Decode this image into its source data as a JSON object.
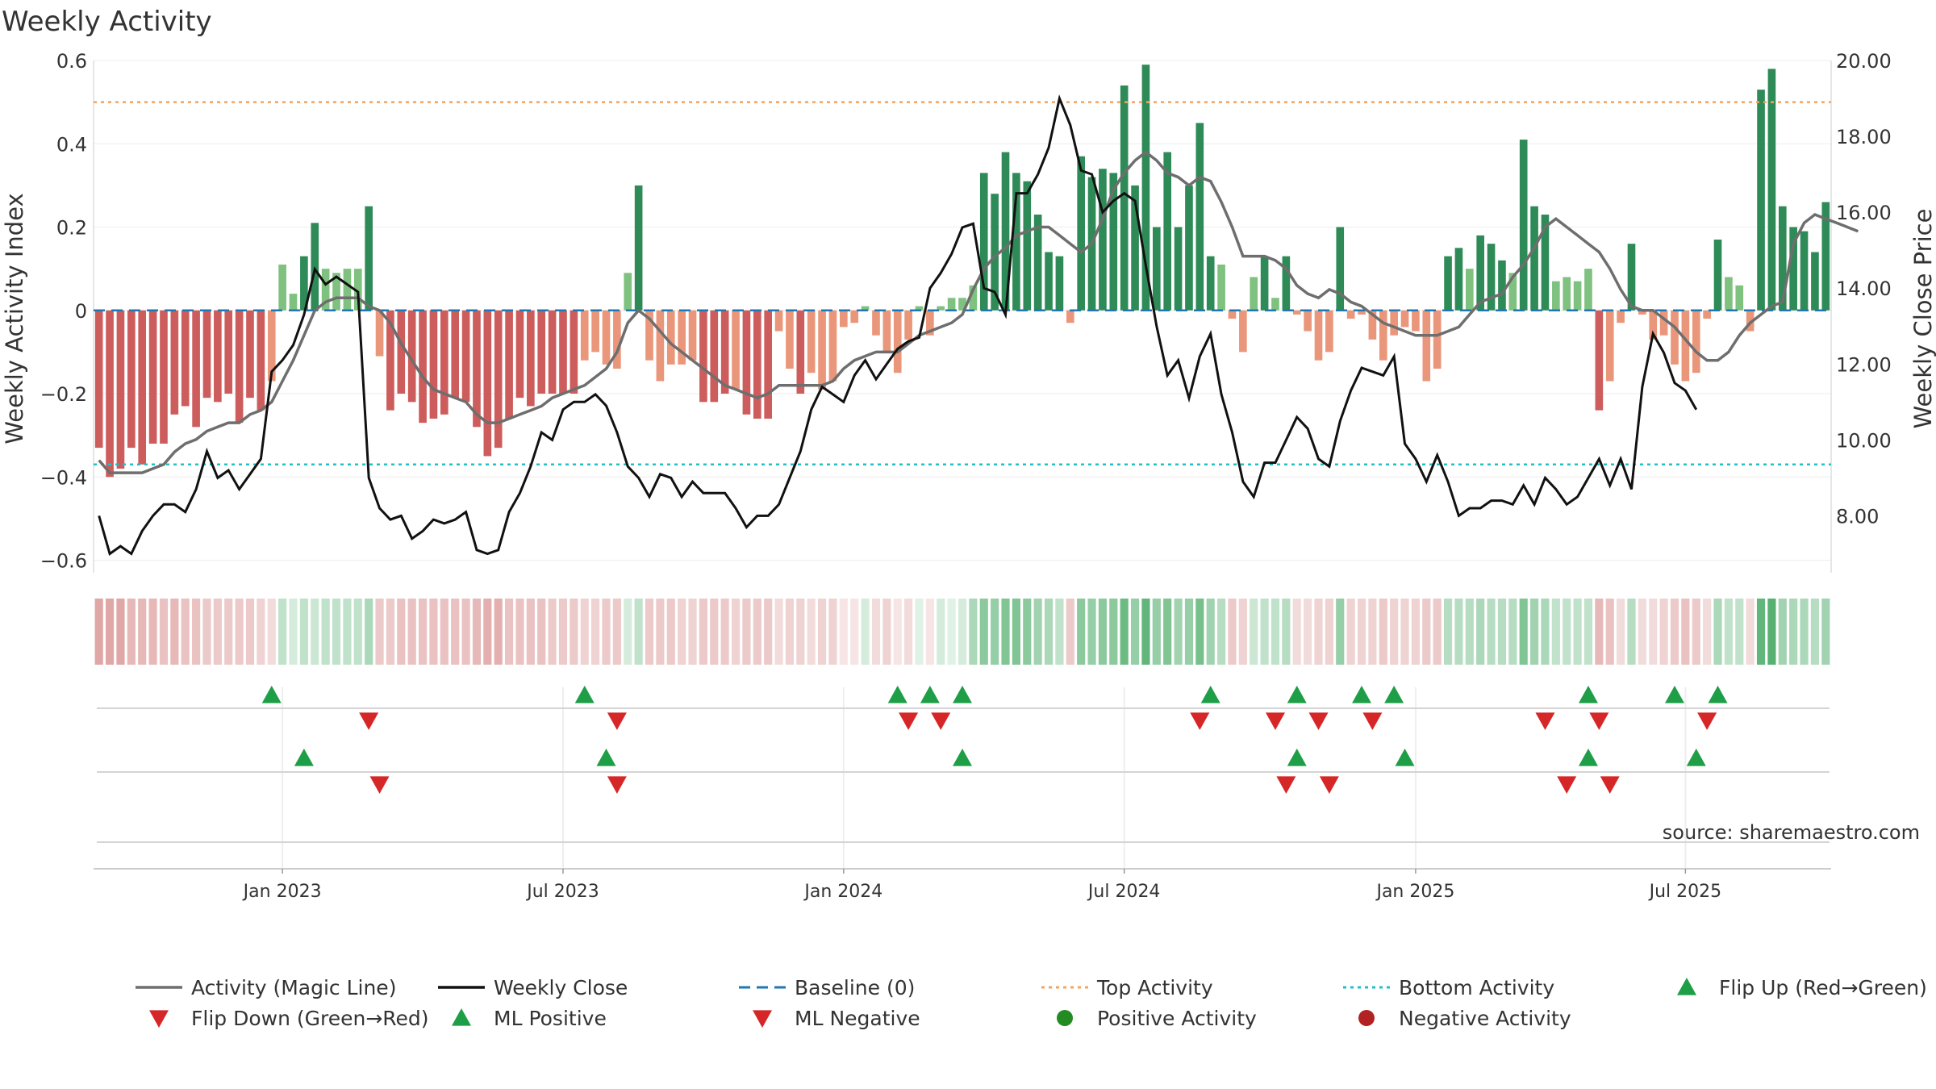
{
  "title": "Weekly Activity",
  "source": "source: sharemaestro.com",
  "colors": {
    "pos_dark": "#2e8b57",
    "pos_light": "#7fc17f",
    "neg_dark": "#cd5c5c",
    "neg_light": "#e9967a",
    "magic": "#6e6e6e",
    "close": "#111111",
    "baseline": "#1f77b4",
    "top": "#f4a460",
    "bottom": "#20c0c8",
    "up": "#1e9e46",
    "down": "#d62728"
  },
  "chart_data": {
    "type": "bar",
    "title": "Weekly Activity",
    "ylabel": "Weekly Activity Index",
    "y2label": "Weekly Close Price",
    "ylim": [
      -0.63,
      0.6
    ],
    "y2lim": [
      6.5,
      20.0
    ],
    "yticks": [
      0.6,
      0.4,
      0.2,
      0,
      -0.2,
      -0.4,
      -0.6
    ],
    "ytick_labels": [
      "0.6",
      "0.4",
      "0.2",
      "0",
      "−0.2",
      "−0.4",
      "−0.6"
    ],
    "y2ticks": [
      20,
      18,
      16,
      14,
      12,
      10,
      8
    ],
    "y2tick_labels": [
      "20.00",
      "18.00",
      "16.00",
      "14.00",
      "12.00",
      "10.00",
      "8.00"
    ],
    "x_start": "2022-09-05",
    "x_end": "2025-09-22",
    "xticks": [
      {
        "label": "Jan 2023",
        "week": 17
      },
      {
        "label": "Jul 2023",
        "week": 43
      },
      {
        "label": "Jan 2024",
        "week": 69
      },
      {
        "label": "Jul 2024",
        "week": 95
      },
      {
        "label": "Jan 2025",
        "week": 122
      },
      {
        "label": "Jul 2025",
        "week": 147
      }
    ],
    "top_activity": 0.5,
    "bottom_activity": -0.37,
    "baseline": 0,
    "activity": [
      -0.33,
      -0.4,
      -0.38,
      -0.33,
      -0.37,
      -0.32,
      -0.32,
      -0.25,
      -0.23,
      -0.28,
      -0.21,
      -0.22,
      -0.2,
      -0.27,
      -0.21,
      -0.24,
      -0.17,
      0.11,
      0.04,
      0.13,
      0.21,
      0.1,
      0.09,
      0.1,
      0.1,
      0.25,
      -0.11,
      -0.24,
      -0.2,
      -0.22,
      -0.27,
      -0.26,
      -0.25,
      -0.21,
      -0.22,
      -0.28,
      -0.35,
      -0.33,
      -0.26,
      -0.21,
      -0.23,
      -0.2,
      -0.2,
      -0.2,
      -0.2,
      -0.12,
      -0.1,
      -0.13,
      -0.14,
      0.09,
      0.3,
      -0.12,
      -0.17,
      -0.13,
      -0.13,
      -0.12,
      -0.22,
      -0.22,
      -0.2,
      -0.19,
      -0.25,
      -0.26,
      -0.26,
      -0.05,
      -0.14,
      -0.2,
      -0.15,
      -0.19,
      -0.17,
      -0.04,
      -0.03,
      0.01,
      -0.06,
      -0.1,
      -0.15,
      -0.07,
      0.01,
      -0.06,
      0.01,
      0.03,
      0.03,
      0.06,
      0.33,
      0.28,
      0.38,
      0.33,
      0.31,
      0.23,
      0.14,
      0.13,
      -0.03,
      0.37,
      0.32,
      0.34,
      0.33,
      0.54,
      0.3,
      0.59,
      0.2,
      0.38,
      0.2,
      0.3,
      0.45,
      0.13,
      0.11,
      -0.02,
      -0.1,
      0.08,
      0.13,
      0.03,
      0.13,
      -0.01,
      -0.05,
      -0.12,
      -0.1,
      0.2,
      -0.02,
      -0.01,
      -0.07,
      -0.12,
      -0.06,
      -0.04,
      -0.05,
      -0.17,
      -0.14,
      0.13,
      0.15,
      0.1,
      0.18,
      0.16,
      0.12,
      0.09,
      0.41,
      0.25,
      0.23,
      0.07,
      0.08,
      0.07,
      0.1,
      -0.24,
      -0.17,
      -0.03,
      0.16,
      -0.01,
      -0.07,
      -0.06,
      -0.13,
      -0.17,
      -0.15,
      -0.02,
      0.17,
      0.08,
      0.06,
      -0.05,
      0.53,
      0.58,
      0.25,
      0.2,
      0.19,
      0.14,
      0.26
    ],
    "magic_line": [
      -0.36,
      -0.39,
      -0.39,
      -0.39,
      -0.39,
      -0.38,
      -0.37,
      -0.34,
      -0.32,
      -0.31,
      -0.29,
      -0.28,
      -0.27,
      -0.27,
      -0.25,
      -0.24,
      -0.22,
      -0.17,
      -0.12,
      -0.06,
      0.0,
      0.02,
      0.03,
      0.03,
      0.03,
      0.01,
      0.0,
      -0.03,
      -0.08,
      -0.12,
      -0.16,
      -0.19,
      -0.2,
      -0.21,
      -0.22,
      -0.25,
      -0.27,
      -0.27,
      -0.26,
      -0.25,
      -0.24,
      -0.23,
      -0.21,
      -0.2,
      -0.19,
      -0.18,
      -0.16,
      -0.14,
      -0.1,
      -0.03,
      0.0,
      -0.02,
      -0.05,
      -0.08,
      -0.1,
      -0.12,
      -0.14,
      -0.16,
      -0.18,
      -0.19,
      -0.2,
      -0.21,
      -0.2,
      -0.18,
      -0.18,
      -0.18,
      -0.18,
      -0.18,
      -0.17,
      -0.14,
      -0.12,
      -0.11,
      -0.1,
      -0.1,
      -0.1,
      -0.08,
      -0.06,
      -0.05,
      -0.04,
      -0.03,
      -0.01,
      0.05,
      0.1,
      0.13,
      0.15,
      0.18,
      0.19,
      0.2,
      0.2,
      0.18,
      0.16,
      0.14,
      0.16,
      0.22,
      0.29,
      0.33,
      0.36,
      0.38,
      0.36,
      0.33,
      0.32,
      0.3,
      0.32,
      0.31,
      0.26,
      0.2,
      0.13,
      0.13,
      0.13,
      0.12,
      0.1,
      0.06,
      0.04,
      0.03,
      0.05,
      0.04,
      0.02,
      0.01,
      -0.01,
      -0.03,
      -0.04,
      -0.05,
      -0.06,
      -0.06,
      -0.06,
      -0.05,
      -0.04,
      -0.01,
      0.02,
      0.03,
      0.04,
      0.08,
      0.11,
      0.15,
      0.2,
      0.22,
      0.2,
      0.18,
      0.16,
      0.14,
      0.1,
      0.05,
      0.01,
      0.0,
      0.0,
      -0.02,
      -0.04,
      -0.07,
      -0.1,
      -0.12,
      -0.12,
      -0.1,
      -0.06,
      -0.03,
      -0.01,
      0.01,
      0.02,
      0.16,
      0.21,
      0.23,
      0.22,
      0.21,
      0.2,
      0.19
    ],
    "weekly_close": [
      8.0,
      7.0,
      7.2,
      7.0,
      7.6,
      8.0,
      8.3,
      8.3,
      8.1,
      8.7,
      9.7,
      9.0,
      9.2,
      8.7,
      9.1,
      9.5,
      11.8,
      12.1,
      12.5,
      13.3,
      14.5,
      14.1,
      14.3,
      14.1,
      13.9,
      9.0,
      8.2,
      7.9,
      8.0,
      7.4,
      7.6,
      7.9,
      7.8,
      7.9,
      8.1,
      7.1,
      7.0,
      7.1,
      8.1,
      8.6,
      9.3,
      10.2,
      10.0,
      10.8,
      11.0,
      11.0,
      11.2,
      10.9,
      10.2,
      9.3,
      9.0,
      8.5,
      9.1,
      9.0,
      8.5,
      8.9,
      8.6,
      8.6,
      8.6,
      8.2,
      7.7,
      8.0,
      8.0,
      8.3,
      9.0,
      9.7,
      10.8,
      11.4,
      11.2,
      11.0,
      11.7,
      12.1,
      11.6,
      12.0,
      12.4,
      12.6,
      12.7,
      14.0,
      14.4,
      14.9,
      15.6,
      15.7,
      14.0,
      13.9,
      13.3,
      16.5,
      16.5,
      17.0,
      17.7,
      19.0,
      18.3,
      17.1,
      17.0,
      16.0,
      16.3,
      16.5,
      16.3,
      14.6,
      13.0,
      11.7,
      12.1,
      11.1,
      12.2,
      12.8,
      11.2,
      10.2,
      8.9,
      8.5,
      9.4,
      9.4,
      10.0,
      10.6,
      10.3,
      9.5,
      9.3,
      10.5,
      11.3,
      11.9,
      11.8,
      11.7,
      12.2,
      9.9,
      9.5,
      8.9,
      9.6,
      8.9,
      8.0,
      8.2,
      8.2,
      8.4,
      8.4,
      8.3,
      8.8,
      8.3,
      9.0,
      8.7,
      8.3,
      8.5,
      9.0,
      9.5,
      8.8,
      9.5,
      8.7,
      11.4,
      12.8,
      12.3,
      11.5,
      11.3,
      10.8
    ],
    "shading": [
      0.5,
      0.5,
      0.5,
      0.4,
      0.4,
      0.4,
      0.35,
      0.4,
      0.35,
      0.35,
      0.3,
      0.3,
      0.3,
      0.3,
      0.3,
      0.25,
      0.2,
      0.3,
      0.2,
      0.3,
      0.25,
      0.3,
      0.3,
      0.3,
      0.3,
      0.4,
      0.3,
      0.3,
      0.35,
      0.35,
      0.35,
      0.35,
      0.35,
      0.35,
      0.35,
      0.4,
      0.45,
      0.45,
      0.35,
      0.35,
      0.35,
      0.35,
      0.3,
      0.3,
      0.3,
      0.25,
      0.25,
      0.3,
      0.3,
      0.2,
      0.3,
      0.3,
      0.3,
      0.3,
      0.25,
      0.25,
      0.3,
      0.3,
      0.3,
      0.25,
      0.3,
      0.3,
      0.3,
      0.2,
      0.25,
      0.25,
      0.2,
      0.25,
      0.25,
      0.15,
      0.15,
      0.2,
      0.2,
      0.25,
      0.15,
      0.2,
      0.15,
      0.15,
      0.2,
      0.15,
      0.2,
      0.4,
      0.55,
      0.5,
      0.6,
      0.6,
      0.55,
      0.45,
      0.4,
      0.3,
      0.3,
      0.55,
      0.5,
      0.55,
      0.55,
      0.7,
      0.5,
      0.75,
      0.5,
      0.6,
      0.45,
      0.5,
      0.65,
      0.45,
      0.35,
      0.3,
      0.25,
      0.25,
      0.3,
      0.3,
      0.35,
      0.2,
      0.2,
      0.25,
      0.25,
      0.5,
      0.25,
      0.25,
      0.25,
      0.3,
      0.25,
      0.25,
      0.25,
      0.3,
      0.3,
      0.35,
      0.35,
      0.35,
      0.4,
      0.35,
      0.35,
      0.35,
      0.6,
      0.45,
      0.4,
      0.3,
      0.3,
      0.3,
      0.3,
      0.4,
      0.35,
      0.2,
      0.35,
      0.2,
      0.2,
      0.25,
      0.3,
      0.35,
      0.3,
      0.2,
      0.4,
      0.3,
      0.3,
      0.2,
      0.75,
      0.8,
      0.45,
      0.4,
      0.4,
      0.35,
      0.45
    ],
    "flip_up": [
      16,
      45,
      74,
      77,
      80,
      103,
      111,
      117,
      120,
      138,
      146,
      150
    ],
    "flip_down": [
      25,
      48,
      75,
      78,
      102,
      109,
      113,
      118,
      134,
      139,
      149
    ],
    "ml_positive": [
      19,
      47,
      80,
      111,
      121,
      138,
      148
    ],
    "ml_negative": [
      26,
      48,
      110,
      114,
      136,
      140
    ],
    "legend": [
      {
        "label": "Activity (Magic Line)",
        "marker": "line-gray"
      },
      {
        "label": "Weekly Close",
        "marker": "line-black"
      },
      {
        "label": "Baseline (0)",
        "marker": "dash-blue"
      },
      {
        "label": "Top Activity",
        "marker": "dot-orange"
      },
      {
        "label": "Bottom Activity",
        "marker": "dot-cyan"
      },
      {
        "label": "Flip Up (Red→Green)",
        "marker": "tri-up-green"
      },
      {
        "label": "Flip Down (Green→Red)",
        "marker": "tri-down-red"
      },
      {
        "label": "ML Positive",
        "marker": "tri-up-green"
      },
      {
        "label": "ML Negative",
        "marker": "tri-down-red"
      },
      {
        "label": "Positive Activity",
        "marker": "circle-green"
      },
      {
        "label": "Negative Activity",
        "marker": "circle-red"
      }
    ]
  }
}
